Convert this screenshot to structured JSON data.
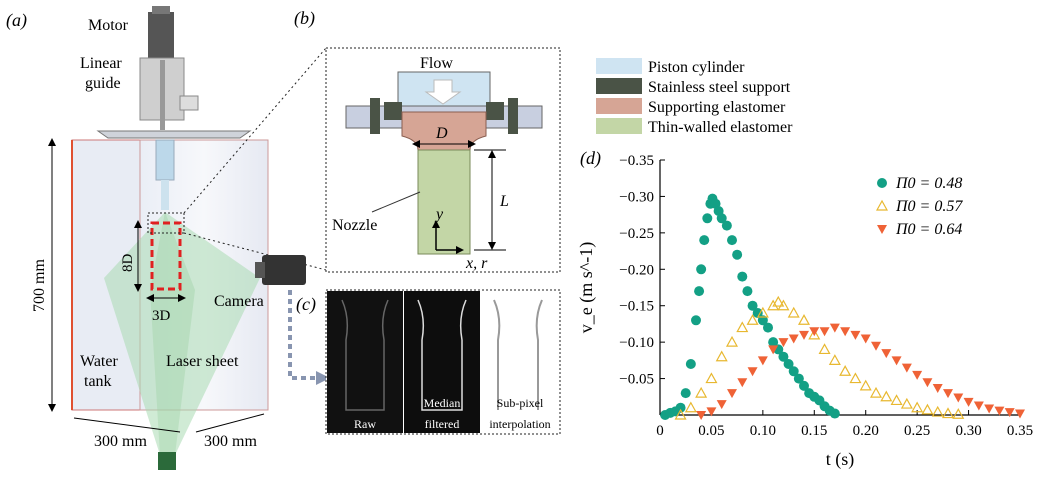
{
  "panel_a": {
    "label": "(a)",
    "motor": "Motor",
    "linear_guide_1": "Linear",
    "linear_guide_2": "guide",
    "height": "700 mm",
    "len_8d": "8D",
    "len_3d": "3D",
    "camera": "Camera",
    "water_tank_1": "Water",
    "water_tank_2": "tank",
    "laser_sheet": "Laser sheet",
    "width_1": "300 mm",
    "width_2": "300 mm"
  },
  "panel_b": {
    "label": "(b)",
    "flow": "Flow",
    "d": "D",
    "nozzle": "Nozzle",
    "y": "y",
    "l": "L",
    "xr": "x, r"
  },
  "panel_c": {
    "label": "(c)",
    "raw": "Raw",
    "median_1": "Median",
    "median_2": "filtered",
    "subpixel_1": "Sub-pixel",
    "subpixel_2": "interpolation"
  },
  "legend_top": [
    {
      "label": "Piston cylinder",
      "color": "#cfe4f2"
    },
    {
      "label": "Stainless steel support",
      "color": "#4a5346"
    },
    {
      "label": "Supporting elastomer",
      "color": "#d6a595"
    },
    {
      "label": "Thin-walled elastomer",
      "color": "#c3d6a6"
    }
  ],
  "panel_d": {
    "label": "(d)"
  },
  "chart_data": {
    "type": "scatter",
    "xlabel": "t (s)",
    "ylabel": "v_e (m s^-1)",
    "xlim": [
      0,
      0.35
    ],
    "ylim": [
      0,
      -0.35
    ],
    "x_ticks": [
      "0",
      "0.05",
      "0.10",
      "0.15",
      "0.20",
      "0.25",
      "0.30",
      "0.35"
    ],
    "y_ticks": [
      "−0.05",
      "−0.10",
      "−0.15",
      "−0.20",
      "−0.25",
      "−0.30",
      "−0.35"
    ],
    "legend_position": "top-right",
    "series": [
      {
        "name": "Π0 = 0.48",
        "marker": "circle-filled",
        "color": "#13a085",
        "points": [
          [
            0.005,
            0
          ],
          [
            0.01,
            -0.003
          ],
          [
            0.015,
            -0.005
          ],
          [
            0.02,
            -0.01
          ],
          [
            0.025,
            -0.03
          ],
          [
            0.03,
            -0.07
          ],
          [
            0.035,
            -0.13
          ],
          [
            0.038,
            -0.17
          ],
          [
            0.04,
            -0.2
          ],
          [
            0.043,
            -0.24
          ],
          [
            0.046,
            -0.27
          ],
          [
            0.049,
            -0.29
          ],
          [
            0.051,
            -0.297
          ],
          [
            0.054,
            -0.29
          ],
          [
            0.057,
            -0.28
          ],
          [
            0.06,
            -0.27
          ],
          [
            0.065,
            -0.26
          ],
          [
            0.07,
            -0.24
          ],
          [
            0.075,
            -0.22
          ],
          [
            0.08,
            -0.19
          ],
          [
            0.085,
            -0.17
          ],
          [
            0.09,
            -0.15
          ],
          [
            0.095,
            -0.14
          ],
          [
            0.1,
            -0.13
          ],
          [
            0.105,
            -0.12
          ],
          [
            0.11,
            -0.1
          ],
          [
            0.115,
            -0.09
          ],
          [
            0.12,
            -0.08
          ],
          [
            0.125,
            -0.07
          ],
          [
            0.13,
            -0.06
          ],
          [
            0.135,
            -0.05
          ],
          [
            0.14,
            -0.04
          ],
          [
            0.145,
            -0.03
          ],
          [
            0.15,
            -0.025
          ],
          [
            0.155,
            -0.02
          ],
          [
            0.16,
            -0.012
          ],
          [
            0.165,
            -0.006
          ],
          [
            0.17,
            -0.002
          ]
        ]
      },
      {
        "name": "Π0 = 0.57",
        "marker": "triangle-up-open",
        "color": "#e8b830",
        "points": [
          [
            0.02,
            0
          ],
          [
            0.03,
            -0.01
          ],
          [
            0.04,
            -0.03
          ],
          [
            0.05,
            -0.05
          ],
          [
            0.06,
            -0.08
          ],
          [
            0.07,
            -0.1
          ],
          [
            0.08,
            -0.12
          ],
          [
            0.09,
            -0.13
          ],
          [
            0.1,
            -0.14
          ],
          [
            0.11,
            -0.15
          ],
          [
            0.115,
            -0.155
          ],
          [
            0.12,
            -0.15
          ],
          [
            0.13,
            -0.14
          ],
          [
            0.14,
            -0.13
          ],
          [
            0.15,
            -0.11
          ],
          [
            0.16,
            -0.09
          ],
          [
            0.17,
            -0.075
          ],
          [
            0.18,
            -0.06
          ],
          [
            0.19,
            -0.05
          ],
          [
            0.2,
            -0.04
          ],
          [
            0.21,
            -0.03
          ],
          [
            0.22,
            -0.025
          ],
          [
            0.23,
            -0.02
          ],
          [
            0.24,
            -0.015
          ],
          [
            0.25,
            -0.01
          ],
          [
            0.26,
            -0.007
          ],
          [
            0.27,
            -0.004
          ],
          [
            0.28,
            -0.002
          ],
          [
            0.29,
            -0.001
          ]
        ]
      },
      {
        "name": "Π0 = 0.64",
        "marker": "triangle-down-filled",
        "color": "#ef6236",
        "points": [
          [
            0.04,
            0
          ],
          [
            0.05,
            -0.005
          ],
          [
            0.06,
            -0.015
          ],
          [
            0.07,
            -0.03
          ],
          [
            0.08,
            -0.045
          ],
          [
            0.09,
            -0.06
          ],
          [
            0.1,
            -0.075
          ],
          [
            0.11,
            -0.09
          ],
          [
            0.12,
            -0.1
          ],
          [
            0.13,
            -0.105
          ],
          [
            0.14,
            -0.11
          ],
          [
            0.15,
            -0.115
          ],
          [
            0.16,
            -0.115
          ],
          [
            0.17,
            -0.12
          ],
          [
            0.18,
            -0.115
          ],
          [
            0.19,
            -0.11
          ],
          [
            0.2,
            -0.105
          ],
          [
            0.21,
            -0.095
          ],
          [
            0.22,
            -0.085
          ],
          [
            0.23,
            -0.075
          ],
          [
            0.24,
            -0.065
          ],
          [
            0.25,
            -0.055
          ],
          [
            0.26,
            -0.045
          ],
          [
            0.27,
            -0.037
          ],
          [
            0.28,
            -0.03
          ],
          [
            0.29,
            -0.024
          ],
          [
            0.3,
            -0.018
          ],
          [
            0.31,
            -0.013
          ],
          [
            0.32,
            -0.009
          ],
          [
            0.33,
            -0.006
          ],
          [
            0.34,
            -0.004
          ],
          [
            0.35,
            -0.002
          ]
        ]
      }
    ]
  }
}
